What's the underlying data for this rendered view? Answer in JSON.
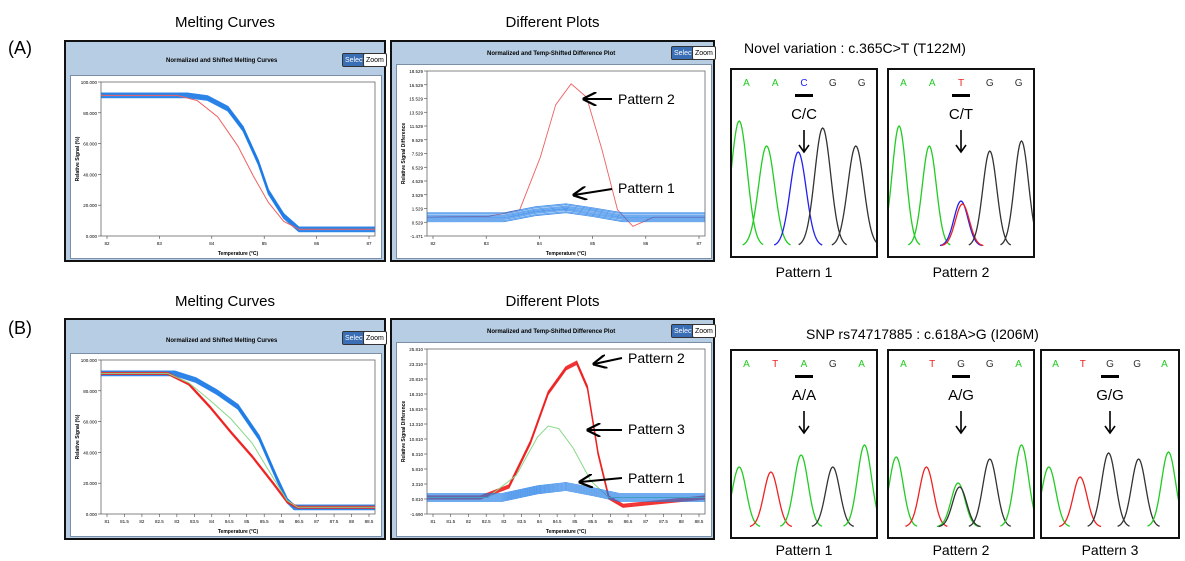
{
  "rows": [
    {
      "id": "A",
      "label": "(A)",
      "melt_title": "Melting Curves",
      "diff_title": "Different Plots",
      "melt_panel_title": "Normalized and Shifted Melting Curves",
      "diff_panel_title": "Normalized and Temp-Shifted Difference Plot",
      "select_label": "Select",
      "zoom_label": "Zoom",
      "melt_ylabel": "Relative Signal (%)",
      "melt_xlabel": "Temperature (°C)",
      "diff_ylabel": "Relative Signal Difference",
      "diff_xlabel": "Temperature (°C)",
      "melt_yticks": [
        "100.000",
        "80.000",
        "60.000",
        "40.000",
        "20.000",
        "0.000"
      ],
      "melt_xticks": [
        "82",
        "83",
        "84",
        "85",
        "86",
        "87"
      ],
      "diff_yticks": [
        "18.529",
        "16.529",
        "15.529",
        "13.529",
        "11.529",
        "9.529",
        "7.529",
        "6.529",
        "4.529",
        "3.529",
        "1.529",
        "0.529",
        "-1.471"
      ],
      "diff_xticks": [
        "82",
        "83",
        "84",
        "85",
        "86",
        "87"
      ],
      "annotations": [
        "Pattern 2",
        "Pattern 1"
      ],
      "seq_header": "Novel variation  : c.365C>T  (T122M)",
      "chromatograms": [
        {
          "bases": [
            "A",
            "A",
            "C",
            "G",
            "G"
          ],
          "genotype": "C/C",
          "label": "Pattern 1"
        },
        {
          "bases": [
            "A",
            "A",
            "T",
            "G",
            "G"
          ],
          "genotype": "C/T",
          "label": "Pattern 2"
        }
      ]
    },
    {
      "id": "B",
      "label": "(B)",
      "melt_title": "Melting Curves",
      "diff_title": "Different Plots",
      "melt_panel_title": "Normalized and Shifted Melting Curves",
      "diff_panel_title": "Normalized and Temp-Shifted Difference Plot",
      "select_label": "Select",
      "zoom_label": "Zoom",
      "melt_ylabel": "Relative Signal (%)",
      "melt_xlabel": "Temperature (°C)",
      "diff_ylabel": "Relative Signal Difference",
      "diff_xlabel": "Temperature (°C)",
      "melt_yticks": [
        "100.000",
        "80.000",
        "60.000",
        "40.000",
        "20.000",
        "0.000"
      ],
      "melt_xticks": [
        "81",
        "81.5",
        "82",
        "82.5",
        "83",
        "83.5",
        "84",
        "84.5",
        "85",
        "85.5",
        "86",
        "86.5",
        "87",
        "87.5",
        "88",
        "88.5"
      ],
      "diff_yticks": [
        "25.810",
        "23.310",
        "20.810",
        "18.310",
        "15.810",
        "13.310",
        "10.810",
        "8.310",
        "5.810",
        "3.310",
        "0.810",
        "-1.690"
      ],
      "diff_xticks": [
        "81",
        "81.5",
        "82",
        "82.5",
        "83",
        "83.5",
        "84",
        "84.5",
        "85",
        "85.5",
        "86",
        "86.5",
        "87",
        "87.5",
        "88",
        "88.5"
      ],
      "annotations": [
        "Pattern 2",
        "Pattern 3",
        "Pattern 1"
      ],
      "seq_header": "SNP rs74717885  : c.618A>G  (I206M)",
      "chromatograms": [
        {
          "bases": [
            "A",
            "T",
            "A",
            "G",
            "A"
          ],
          "genotype": "A/A",
          "label": "Pattern 1"
        },
        {
          "bases": [
            "A",
            "T",
            "G",
            "G",
            "A"
          ],
          "genotype": "A/G",
          "label": "Pattern 2"
        },
        {
          "bases": [
            "A",
            "T",
            "G",
            "G",
            "A"
          ],
          "genotype": "G/G",
          "label": "Pattern 3"
        }
      ]
    }
  ],
  "colors": {
    "panel_bg": "#b7cde3",
    "wildtype_curves": "#1e7be6",
    "variant_curve": "#f06060",
    "variant_bold": "#ee2222",
    "het_curve": "#88d888",
    "base_A": "#22cc22",
    "base_C": "#2222ee",
    "base_G": "#333333",
    "base_T": "#ee2222"
  },
  "chart_data": [
    {
      "type": "line",
      "title": "Normalized and Shifted Melting Curves",
      "xlabel": "Temperature (°C)",
      "ylabel": "Relative Signal (%)",
      "xlim": [
        81.8,
        87.2
      ],
      "ylim": [
        -5,
        110
      ],
      "series": [
        {
          "x": [
            81.8,
            83.5,
            83.9,
            84.3,
            84.6,
            84.9,
            85.1,
            85.4,
            85.7,
            87.2
          ],
          "y": [
            100,
            100,
            98,
            90,
            75,
            50,
            28,
            10,
            0,
            0
          ]
        },
        {
          "x": [
            81.8,
            83.3,
            83.7,
            84.1,
            84.5,
            84.8,
            85.1,
            85.4,
            85.7,
            87.2
          ],
          "y": [
            100,
            100,
            96,
            84,
            62,
            40,
            20,
            6,
            0,
            0
          ]
        }
      ]
    },
    {
      "type": "line",
      "title": "Normalized and Temp-Shifted Difference Plot",
      "xlabel": "Temperature (°C)",
      "ylabel": "Relative Signal Difference",
      "xlim": [
        81.8,
        87.2
      ],
      "ylim": [
        -2.5,
        19.5
      ],
      "series": [
        {
          "x": [
            81.8,
            83.0,
            83.6,
            84.0,
            84.3,
            84.6,
            84.9,
            85.2,
            85.5,
            85.8,
            86.2,
            87.2
          ],
          "y": [
            0,
            0.1,
            1,
            8,
            15,
            17.8,
            16,
            9,
            1,
            -1.2,
            0,
            0
          ]
        },
        {
          "x": [
            81.8,
            83.3,
            83.9,
            84.5,
            85.0,
            85.6,
            87.2
          ],
          "y": [
            0,
            0,
            0.8,
            1.2,
            0.7,
            0,
            0
          ]
        }
      ]
    },
    {
      "type": "line",
      "title": "Normalized and Shifted Melting Curves",
      "xlabel": "Temperature (°C)",
      "ylabel": "Relative Signal (%)",
      "xlim": [
        80.9,
        88.7
      ],
      "ylim": [
        -5,
        110
      ],
      "series": [
        {
          "x": [
            80.9,
            83.0,
            83.6,
            84.2,
            84.8,
            85.4,
            85.9,
            86.2,
            86.4,
            88.7
          ],
          "y": [
            100,
            100,
            95,
            86,
            75,
            52,
            22,
            5,
            0,
            0
          ]
        },
        {
          "x": [
            80.9,
            82.8,
            83.4,
            84.0,
            84.6,
            85.2,
            85.8,
            86.2,
            86.5,
            88.7
          ],
          "y": [
            100,
            100,
            92,
            75,
            56,
            38,
            18,
            4,
            0,
            0
          ]
        },
        {
          "x": [
            80.9,
            82.8,
            83.4,
            84.0,
            84.6,
            85.2,
            85.8,
            86.2,
            86.5,
            88.7
          ],
          "y": [
            100,
            100,
            93,
            80,
            66,
            48,
            22,
            5,
            0,
            0
          ]
        }
      ]
    },
    {
      "type": "line",
      "title": "Normalized and Temp-Shifted Difference Plot",
      "xlabel": "Temperature (°C)",
      "ylabel": "Relative Signal Difference",
      "xlim": [
        80.9,
        88.7
      ],
      "ylim": [
        -3,
        27
      ],
      "series": [
        {
          "x": [
            80.9,
            82.4,
            83.2,
            83.8,
            84.3,
            84.8,
            85.1,
            85.4,
            85.7,
            86.0,
            86.4,
            88.7
          ],
          "y": [
            0,
            0,
            2,
            10,
            19,
            23.5,
            24.5,
            20,
            8,
            0,
            -1.5,
            0
          ]
        },
        {
          "x": [
            80.9,
            82.6,
            83.4,
            84.0,
            84.3,
            84.6,
            85.0,
            85.5,
            86.0,
            88.7
          ],
          "y": [
            0,
            0,
            4,
            11,
            13,
            12.5,
            9,
            3,
            0,
            0
          ]
        },
        {
          "x": [
            80.9,
            83.0,
            84.0,
            84.8,
            85.6,
            86.3,
            88.7
          ],
          "y": [
            0,
            0,
            1.4,
            2,
            1,
            0,
            0
          ]
        }
      ]
    }
  ]
}
